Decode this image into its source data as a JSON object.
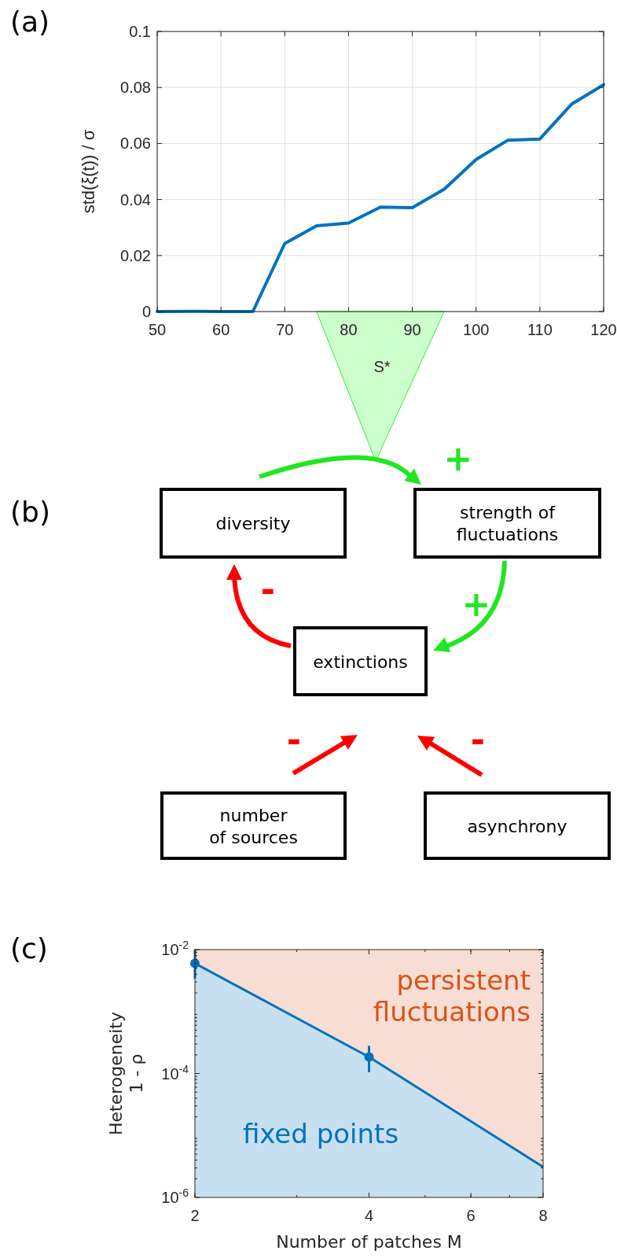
{
  "chart_data": [
    {
      "type": "line",
      "title": "(a)",
      "ylabel": "std(ξ(t)) / σ",
      "annotations": [
        "S*"
      ],
      "x": [
        50,
        55,
        60,
        65,
        70,
        75,
        80,
        85,
        90,
        95,
        100,
        105,
        110,
        115,
        120
      ],
      "series": [
        {
          "color": "#0072bd",
          "values": [
            0,
            0.0001,
            0,
            0,
            0.0243,
            0.0306,
            0.0316,
            0.0373,
            0.0371,
            0.0437,
            0.0543,
            0.0612,
            0.0616,
            0.0741,
            0.081
          ]
        }
      ],
      "xlim": [
        50,
        120
      ],
      "xticks": [
        50,
        60,
        70,
        80,
        90,
        100,
        110,
        120
      ],
      "ylim": [
        0,
        0.1
      ],
      "yticks": [
        0,
        0.02,
        0.04,
        0.06,
        0.08,
        0.1
      ],
      "grid": true
    },
    {
      "type": "other",
      "title": "(b)",
      "annotations": [
        "diversity",
        "strength of\nfluctuations",
        "extinctions",
        "number\nof sources",
        "asynchrony",
        "+",
        "+",
        "-",
        "-",
        "-"
      ]
    },
    {
      "type": "line",
      "title": "(c)",
      "xlabel": "Number of patches  M",
      "ylabel": "Heterogeneity\n1 - ρ",
      "annotations": [
        "persistent\nfluctuations",
        "fixed points"
      ],
      "log": "xy",
      "series": [
        {
          "type": "area",
          "color": "#0072bd",
          "x": [
            2,
            4,
            8
          ],
          "values": [
            0.006,
            0.000185,
            3.1e-06
          ]
        },
        {
          "type": "scatter",
          "color": "#0072bd",
          "marker": "circle",
          "x": [
            2,
            4
          ],
          "values": [
            0.006,
            0.000185
          ],
          "errors": [
            [
              0.0034,
              0.01
            ],
            [
              0.000105,
              0.00028
            ]
          ]
        }
      ],
      "bands": [
        {
          "axis": "x",
          "from": 2,
          "to": 8,
          "color": "#f7ddd3"
        }
      ],
      "xlim": [
        2,
        8
      ],
      "xticks": [
        2,
        4,
        6,
        8
      ],
      "ylim": [
        1e-06,
        0.01
      ],
      "yticks": [
        {
          "value": 1e-06,
          "label": "10$^{-6}$"
        },
        {
          "value": 0.0001,
          "label": "10$^{-4}$"
        },
        {
          "value": 0.01,
          "label": "10$^{-2}$"
        }
      ],
      "grid": false
    }
  ]
}
